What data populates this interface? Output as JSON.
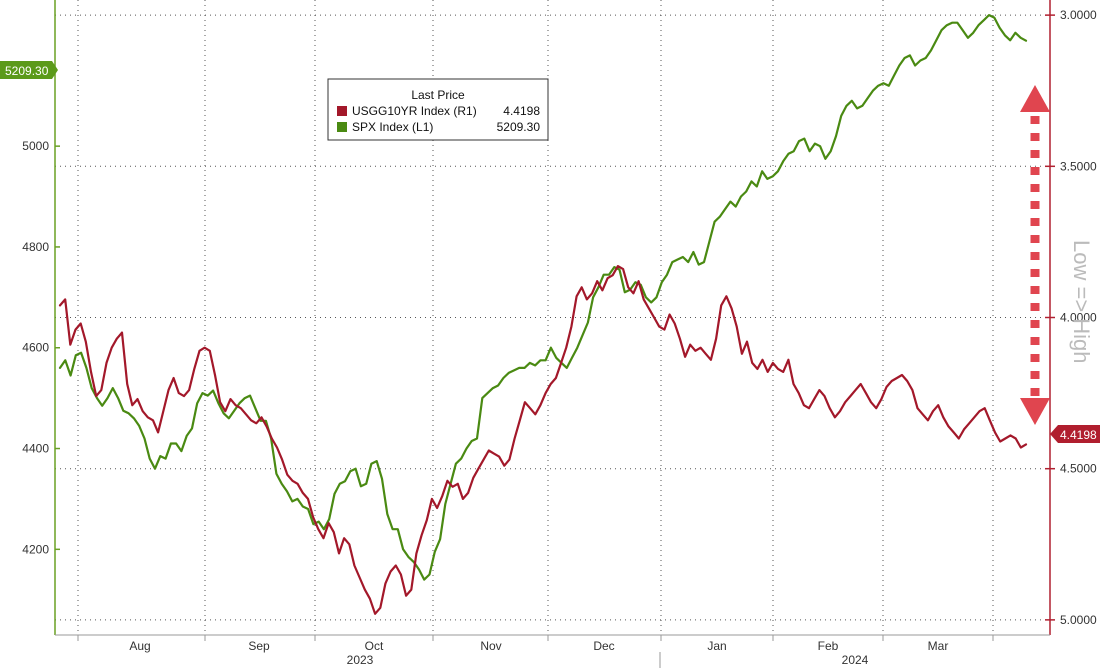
{
  "chart_data": {
    "type": "line",
    "legend": {
      "title": "Last Price",
      "entries": [
        {
          "name": "USGG10YR Index  (R1)",
          "value": "4.4198",
          "color": "#a3182a"
        },
        {
          "name": "SPX Index  (L1)",
          "value": "5209.30",
          "color": "#4a8a12"
        }
      ]
    },
    "x_axis": {
      "months": [
        "Aug",
        "Sep",
        "Oct",
        "Nov",
        "Dec",
        "Jan",
        "Feb",
        "Mar"
      ],
      "years": [
        "2023",
        "2024"
      ]
    },
    "left_axis": {
      "ticks": [
        "4200",
        "4400",
        "4600",
        "4800",
        "5000"
      ],
      "range": [
        4030,
        5290
      ]
    },
    "right_axis": {
      "ticks": [
        "3.0000",
        "3.5000",
        "4.0000",
        "4.5000",
        "5.0000"
      ],
      "range": [
        2.95,
        5.05
      ],
      "inverted": true
    },
    "last_value_tags": {
      "spx": "5209.30",
      "usgg10yr": "4.4198"
    },
    "annotation": "Low => High",
    "series": [
      {
        "name": "SPX Index",
        "axis": "left",
        "color": "#4a8a12",
        "values": [
          4560,
          4575,
          4545,
          4585,
          4590,
          4560,
          4520,
          4500,
          4485,
          4500,
          4520,
          4500,
          4475,
          4470,
          4460,
          4445,
          4420,
          4380,
          4360,
          4385,
          4380,
          4410,
          4410,
          4395,
          4425,
          4440,
          4490,
          4510,
          4505,
          4515,
          4490,
          4470,
          4460,
          4475,
          4490,
          4500,
          4505,
          4480,
          4455,
          4455,
          4420,
          4350,
          4330,
          4315,
          4295,
          4300,
          4285,
          4280,
          4250,
          4255,
          4240,
          4260,
          4310,
          4330,
          4335,
          4355,
          4360,
          4325,
          4330,
          4370,
          4375,
          4340,
          4270,
          4240,
          4240,
          4200,
          4185,
          4175,
          4160,
          4140,
          4150,
          4195,
          4220,
          4290,
          4330,
          4370,
          4380,
          4400,
          4415,
          4420,
          4500,
          4510,
          4520,
          4525,
          4540,
          4550,
          4555,
          4560,
          4560,
          4570,
          4565,
          4575,
          4575,
          4600,
          4580,
          4570,
          4560,
          4580,
          4600,
          4625,
          4650,
          4700,
          4720,
          4745,
          4745,
          4760,
          4755,
          4710,
          4715,
          4730,
          4725,
          4700,
          4690,
          4700,
          4730,
          4745,
          4770,
          4775,
          4780,
          4770,
          4790,
          4765,
          4770,
          4810,
          4850,
          4860,
          4875,
          4890,
          4880,
          4900,
          4910,
          4930,
          4920,
          4950,
          4935,
          4940,
          4950,
          4970,
          4985,
          4990,
          5010,
          5015,
          4990,
          5005,
          5000,
          4975,
          4990,
          5020,
          5060,
          5080,
          5090,
          5075,
          5080,
          5095,
          5110,
          5120,
          5125,
          5120,
          5140,
          5160,
          5175,
          5180,
          5160,
          5170,
          5175,
          5190,
          5210,
          5230,
          5240,
          5245,
          5245,
          5230,
          5215,
          5225,
          5240,
          5250,
          5260,
          5255,
          5235,
          5220,
          5210,
          5225,
          5215,
          5209.3
        ]
      },
      {
        "name": "USGG10YR Index",
        "axis": "right",
        "color": "#a3182a",
        "values": [
          3.96,
          3.94,
          4.09,
          4.04,
          4.02,
          4.08,
          4.18,
          4.26,
          4.24,
          4.15,
          4.1,
          4.07,
          4.05,
          4.22,
          4.29,
          4.27,
          4.31,
          4.33,
          4.34,
          4.38,
          4.31,
          4.24,
          4.2,
          4.25,
          4.26,
          4.24,
          4.17,
          4.11,
          4.1,
          4.11,
          4.19,
          4.28,
          4.31,
          4.27,
          4.29,
          4.3,
          4.32,
          4.34,
          4.35,
          4.33,
          4.36,
          4.4,
          4.43,
          4.47,
          4.52,
          4.54,
          4.55,
          4.58,
          4.6,
          4.66,
          4.7,
          4.73,
          4.68,
          4.71,
          4.78,
          4.73,
          4.75,
          4.82,
          4.86,
          4.9,
          4.93,
          4.98,
          4.96,
          4.88,
          4.84,
          4.82,
          4.85,
          4.92,
          4.9,
          4.78,
          4.72,
          4.67,
          4.6,
          4.63,
          4.59,
          4.54,
          4.56,
          4.55,
          4.6,
          4.58,
          4.53,
          4.5,
          4.47,
          4.44,
          4.45,
          4.46,
          4.49,
          4.47,
          4.4,
          4.34,
          4.28,
          4.3,
          4.32,
          4.29,
          4.25,
          4.22,
          4.2,
          4.15,
          4.1,
          4.03,
          3.93,
          3.9,
          3.94,
          3.92,
          3.88,
          3.91,
          3.87,
          3.86,
          3.83,
          3.84,
          3.9,
          3.92,
          3.88,
          3.94,
          3.97,
          4.0,
          4.03,
          4.04,
          3.99,
          4.02,
          4.07,
          4.13,
          4.09,
          4.11,
          4.1,
          4.12,
          4.14,
          4.07,
          3.96,
          3.93,
          3.97,
          4.03,
          4.12,
          4.08,
          4.15,
          4.17,
          4.14,
          4.18,
          4.15,
          4.17,
          4.18,
          4.14,
          4.22,
          4.25,
          4.29,
          4.3,
          4.27,
          4.24,
          4.26,
          4.3,
          4.33,
          4.31,
          4.28,
          4.26,
          4.24,
          4.22,
          4.25,
          4.28,
          4.3,
          4.27,
          4.23,
          4.21,
          4.2,
          4.19,
          4.21,
          4.24,
          4.3,
          4.32,
          4.34,
          4.31,
          4.29,
          4.33,
          4.36,
          4.38,
          4.4,
          4.37,
          4.35,
          4.33,
          4.31,
          4.3,
          4.34,
          4.38,
          4.41,
          4.4,
          4.39,
          4.4,
          4.43,
          4.4198
        ]
      }
    ]
  }
}
